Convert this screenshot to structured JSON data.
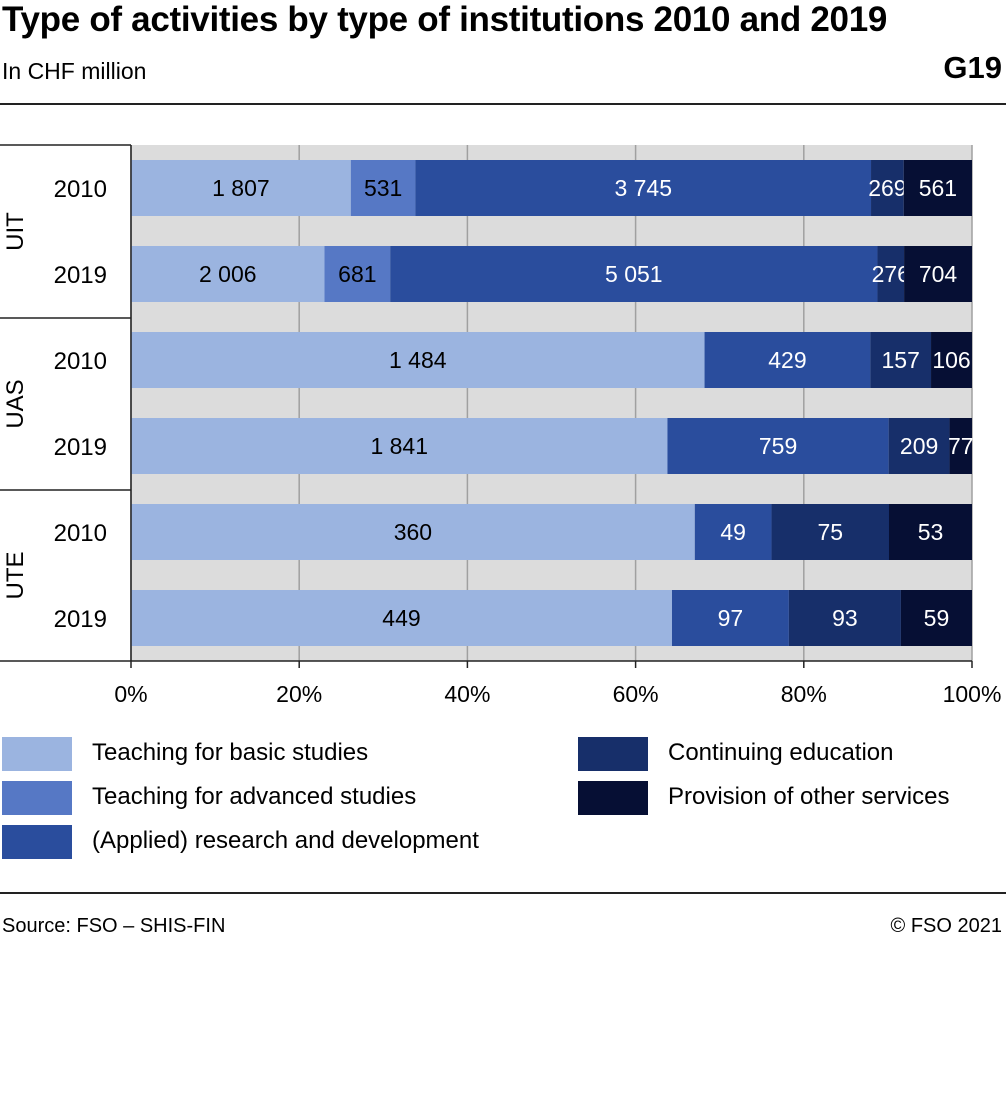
{
  "header": {
    "title": "Type of activities by type of institutions 2010 and 2019",
    "subtitle": "In CHF million",
    "code": "G19"
  },
  "footer": {
    "source": "Source: FSO – SHIS-FIN",
    "copyright": "© FSO 2021"
  },
  "colors": {
    "plot_bg": "#dcdcdc",
    "grid": "#a0a0a0",
    "teaching_basic": "#9bb4e0",
    "teaching_advanced": "#5678c5",
    "research": "#2a4d9d",
    "continuing": "#172f6a",
    "other_services": "#060f34"
  },
  "chart_data": {
    "type": "bar",
    "orientation": "horizontal",
    "stacking": "percent",
    "title": "Type of activities by type of institutions 2010 and 2019",
    "subtitle": "In CHF million",
    "groups": [
      {
        "name": "UIT",
        "rows": [
          "2010",
          "2019"
        ]
      },
      {
        "name": "UAS",
        "rows": [
          "2010",
          "2019"
        ]
      },
      {
        "name": "UTE",
        "rows": [
          "2010",
          "2019"
        ]
      }
    ],
    "categories": [
      "UIT 2010",
      "UIT 2019",
      "UAS 2010",
      "UAS 2019",
      "UTE 2010",
      "UTE 2019"
    ],
    "series": [
      {
        "name": "Teaching for basic studies",
        "color": "#9bb4e0",
        "label_color": "#000000",
        "values": [
          1807,
          2006,
          1484,
          1841,
          360,
          449
        ],
        "labels": [
          "1 807",
          "2 006",
          "1 484",
          "1 841",
          "360",
          "449"
        ]
      },
      {
        "name": "Teaching for advanced studies",
        "color": "#5678c5",
        "label_color": "#000000",
        "values": [
          531,
          681,
          0,
          0,
          0,
          0
        ],
        "labels": [
          "531",
          "681",
          "",
          "",
          "",
          ""
        ]
      },
      {
        "name": "(Applied) research and development",
        "color": "#2a4d9d",
        "label_color": "#ffffff",
        "values": [
          3745,
          5051,
          429,
          759,
          49,
          97
        ],
        "labels": [
          "3 745",
          "5 051",
          "429",
          "759",
          "49",
          "97"
        ]
      },
      {
        "name": "Continuing education",
        "color": "#172f6a",
        "label_color": "#ffffff",
        "values": [
          269,
          276,
          157,
          209,
          75,
          93
        ],
        "labels": [
          "269",
          "276",
          "157",
          "209",
          "75",
          "93"
        ]
      },
      {
        "name": "Provision of other services",
        "color": "#060f34",
        "label_color": "#ffffff",
        "values": [
          561,
          704,
          106,
          77,
          53,
          59
        ],
        "labels": [
          "561",
          "704",
          "106",
          "77",
          "53",
          "59"
        ]
      }
    ],
    "xticks": [
      "0%",
      "20%",
      "40%",
      "60%",
      "80%",
      "100%"
    ],
    "xlim": [
      0,
      100
    ],
    "grid": true,
    "legend_position": "bottom"
  }
}
